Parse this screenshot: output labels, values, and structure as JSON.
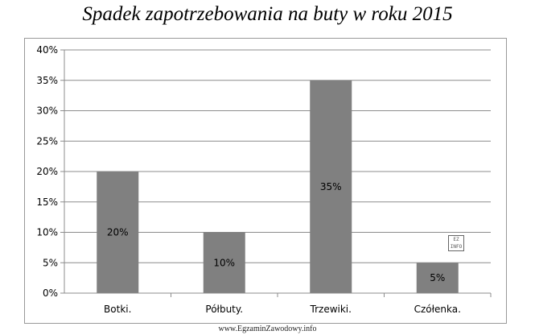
{
  "chart_data": {
    "type": "bar",
    "title": "Spadek zapotrzebowania na buty w roku 2015",
    "xlabel": "",
    "ylabel": "",
    "categories": [
      "Botki.",
      "Półbuty.",
      "Trzewiki.",
      "Czółenka."
    ],
    "values": [
      20,
      10,
      35,
      5
    ],
    "data_labels": [
      "20%",
      "10%",
      "35%",
      "5%"
    ],
    "y_ticks": [
      "0%",
      "5%",
      "10%",
      "15%",
      "20%",
      "25%",
      "30%",
      "35%",
      "40%"
    ],
    "ylim": [
      0,
      40
    ],
    "grid": true,
    "legend": "none",
    "bar_color": "#808080"
  },
  "watermark": "www.EgzaminZawodowy.info",
  "stamp_text": "EZ INFO"
}
